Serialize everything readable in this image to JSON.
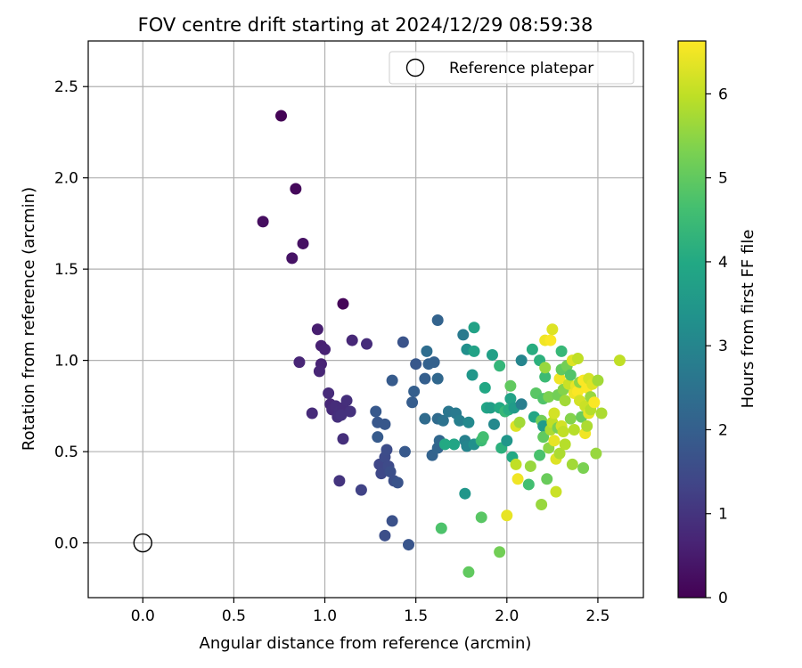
{
  "chart_data": {
    "type": "scatter",
    "title": "FOV centre drift starting at 2024/12/29 08:59:38",
    "xlabel": "Angular distance from reference (arcmin)",
    "ylabel": "Rotation from reference (arcmin)",
    "xlim": [
      -0.3,
      2.75
    ],
    "ylim": [
      -0.3,
      2.75
    ],
    "xticks": [
      "0.0",
      "0.5",
      "1.0",
      "1.5",
      "2.0",
      "2.5"
    ],
    "yticks": [
      "0.0",
      "0.5",
      "1.0",
      "1.5",
      "2.0",
      "2.5"
    ],
    "grid": true,
    "legend": {
      "position": "top-right",
      "entries": [
        "Reference platepar"
      ]
    },
    "reference_point": {
      "x": 0.0,
      "y": 0.0
    },
    "colorbar": {
      "label": "Hours from first FF file",
      "range": [
        0,
        6.63
      ],
      "ticks": [
        "0",
        "1",
        "2",
        "3",
        "4",
        "5",
        "6"
      ],
      "colormap": "viridis"
    },
    "series": [
      {
        "points": [
          {
            "x": 0.76,
            "y": 2.34,
            "h": 0.05
          },
          {
            "x": 1.1,
            "y": 1.31,
            "h": 0.1
          },
          {
            "x": 0.84,
            "y": 1.94,
            "h": 0.15
          },
          {
            "x": 0.66,
            "y": 1.76,
            "h": 0.25
          },
          {
            "x": 0.88,
            "y": 1.64,
            "h": 0.3
          },
          {
            "x": 0.82,
            "y": 1.56,
            "h": 0.35
          },
          {
            "x": 0.96,
            "y": 1.17,
            "h": 0.55
          },
          {
            "x": 0.98,
            "y": 1.08,
            "h": 0.6
          },
          {
            "x": 1.0,
            "y": 1.06,
            "h": 0.65
          },
          {
            "x": 0.86,
            "y": 0.99,
            "h": 0.7
          },
          {
            "x": 0.98,
            "y": 0.98,
            "h": 0.65
          },
          {
            "x": 0.97,
            "y": 0.94,
            "h": 0.7
          },
          {
            "x": 1.15,
            "y": 1.11,
            "h": 0.75
          },
          {
            "x": 1.23,
            "y": 1.09,
            "h": 0.85
          },
          {
            "x": 1.02,
            "y": 0.82,
            "h": 0.8
          },
          {
            "x": 1.03,
            "y": 0.76,
            "h": 0.75
          },
          {
            "x": 1.04,
            "y": 0.73,
            "h": 0.8
          },
          {
            "x": 1.06,
            "y": 0.75,
            "h": 0.85
          },
          {
            "x": 1.08,
            "y": 0.72,
            "h": 0.9
          },
          {
            "x": 1.1,
            "y": 0.74,
            "h": 0.85
          },
          {
            "x": 1.12,
            "y": 0.78,
            "h": 0.9
          },
          {
            "x": 1.07,
            "y": 0.69,
            "h": 0.9
          },
          {
            "x": 1.09,
            "y": 0.7,
            "h": 0.95
          },
          {
            "x": 0.93,
            "y": 0.71,
            "h": 0.8
          },
          {
            "x": 1.14,
            "y": 0.72,
            "h": 0.95
          },
          {
            "x": 1.1,
            "y": 0.57,
            "h": 0.9
          },
          {
            "x": 1.08,
            "y": 0.34,
            "h": 1.0
          },
          {
            "x": 1.2,
            "y": 0.29,
            "h": 1.3
          },
          {
            "x": 1.3,
            "y": 0.43,
            "h": 1.4
          },
          {
            "x": 1.31,
            "y": 0.38,
            "h": 1.45
          },
          {
            "x": 1.33,
            "y": 0.47,
            "h": 1.5
          },
          {
            "x": 1.34,
            "y": 0.51,
            "h": 1.55
          },
          {
            "x": 1.35,
            "y": 0.42,
            "h": 1.5
          },
          {
            "x": 1.36,
            "y": 0.39,
            "h": 1.6
          },
          {
            "x": 1.33,
            "y": 0.04,
            "h": 1.6
          },
          {
            "x": 1.37,
            "y": 0.12,
            "h": 1.65
          },
          {
            "x": 1.38,
            "y": 0.34,
            "h": 1.6
          },
          {
            "x": 1.4,
            "y": 0.33,
            "h": 1.7
          },
          {
            "x": 1.46,
            "y": -0.01,
            "h": 1.75
          },
          {
            "x": 1.33,
            "y": 0.65,
            "h": 1.8
          },
          {
            "x": 1.29,
            "y": 0.66,
            "h": 1.8
          },
          {
            "x": 1.28,
            "y": 0.72,
            "h": 1.85
          },
          {
            "x": 1.29,
            "y": 0.58,
            "h": 1.9
          },
          {
            "x": 1.37,
            "y": 0.89,
            "h": 1.9
          },
          {
            "x": 1.43,
            "y": 1.1,
            "h": 1.7
          },
          {
            "x": 1.44,
            "y": 0.5,
            "h": 1.85
          },
          {
            "x": 1.48,
            "y": 0.77,
            "h": 1.95
          },
          {
            "x": 1.49,
            "y": 0.83,
            "h": 2.0
          },
          {
            "x": 1.5,
            "y": 0.98,
            "h": 1.8
          },
          {
            "x": 1.55,
            "y": 0.9,
            "h": 2.0
          },
          {
            "x": 1.57,
            "y": 0.98,
            "h": 2.05
          },
          {
            "x": 1.6,
            "y": 0.99,
            "h": 2.05
          },
          {
            "x": 1.62,
            "y": 1.22,
            "h": 2.1
          },
          {
            "x": 1.62,
            "y": 0.9,
            "h": 2.2
          },
          {
            "x": 1.59,
            "y": 0.48,
            "h": 2.1
          },
          {
            "x": 1.62,
            "y": 0.52,
            "h": 2.15
          },
          {
            "x": 1.63,
            "y": 0.56,
            "h": 2.2
          },
          {
            "x": 1.62,
            "y": 0.68,
            "h": 2.3
          },
          {
            "x": 1.55,
            "y": 0.68,
            "h": 2.3
          },
          {
            "x": 1.56,
            "y": 1.05,
            "h": 2.35
          },
          {
            "x": 1.65,
            "y": 0.67,
            "h": 2.5
          },
          {
            "x": 1.68,
            "y": 0.72,
            "h": 2.6
          },
          {
            "x": 1.72,
            "y": 0.71,
            "h": 2.7
          },
          {
            "x": 1.77,
            "y": 0.56,
            "h": 2.9
          },
          {
            "x": 1.78,
            "y": 0.53,
            "h": 3.0
          },
          {
            "x": 1.74,
            "y": 0.67,
            "h": 2.85
          },
          {
            "x": 1.76,
            "y": 1.14,
            "h": 2.7
          },
          {
            "x": 1.77,
            "y": 0.27,
            "h": 3.45
          },
          {
            "x": 1.82,
            "y": 0.54,
            "h": 3.3
          },
          {
            "x": 1.79,
            "y": 0.66,
            "h": 3.1
          },
          {
            "x": 1.78,
            "y": 1.06,
            "h": 3.3
          },
          {
            "x": 1.81,
            "y": 0.92,
            "h": 3.5
          },
          {
            "x": 1.82,
            "y": 1.18,
            "h": 3.8
          },
          {
            "x": 1.82,
            "y": 1.05,
            "h": 3.8
          },
          {
            "x": 1.71,
            "y": 0.54,
            "h": 3.9
          },
          {
            "x": 1.66,
            "y": 0.54,
            "h": 4.0
          },
          {
            "x": 1.64,
            "y": 0.08,
            "h": 4.75
          },
          {
            "x": 1.79,
            "y": -0.16,
            "h": 5.0
          },
          {
            "x": 1.86,
            "y": 0.14,
            "h": 4.9
          },
          {
            "x": 1.86,
            "y": 0.56,
            "h": 4.5
          },
          {
            "x": 1.87,
            "y": 0.58,
            "h": 4.6
          },
          {
            "x": 1.88,
            "y": 0.85,
            "h": 3.95
          },
          {
            "x": 1.89,
            "y": 0.74,
            "h": 3.9
          },
          {
            "x": 1.91,
            "y": 0.74,
            "h": 3.7
          },
          {
            "x": 1.92,
            "y": 1.03,
            "h": 3.75
          },
          {
            "x": 1.93,
            "y": 0.65,
            "h": 3.1
          },
          {
            "x": 1.96,
            "y": 0.74,
            "h": 4.0
          },
          {
            "x": 1.96,
            "y": 0.97,
            "h": 4.35
          },
          {
            "x": 1.97,
            "y": 0.52,
            "h": 4.2
          },
          {
            "x": 1.99,
            "y": 0.72,
            "h": 4.4
          },
          {
            "x": 2.0,
            "y": 0.56,
            "h": 3.45
          },
          {
            "x": 2.01,
            "y": 0.73,
            "h": 4.1
          },
          {
            "x": 2.02,
            "y": 0.79,
            "h": 3.8
          },
          {
            "x": 2.02,
            "y": 0.86,
            "h": 5.0
          },
          {
            "x": 2.03,
            "y": 0.47,
            "h": 4.0
          },
          {
            "x": 2.04,
            "y": 0.74,
            "h": 3.6
          },
          {
            "x": 2.05,
            "y": 0.64,
            "h": 6.3
          },
          {
            "x": 2.05,
            "y": 0.43,
            "h": 6.0
          },
          {
            "x": 2.06,
            "y": 0.35,
            "h": 6.5
          },
          {
            "x": 2.07,
            "y": 0.66,
            "h": 5.7
          },
          {
            "x": 2.08,
            "y": 1.0,
            "h": 3.0
          },
          {
            "x": 2.08,
            "y": 0.76,
            "h": 2.8
          },
          {
            "x": 1.96,
            "y": -0.05,
            "h": 5.2
          },
          {
            "x": 2.0,
            "y": 0.15,
            "h": 6.4
          },
          {
            "x": 2.12,
            "y": 0.32,
            "h": 4.6
          },
          {
            "x": 2.13,
            "y": 0.42,
            "h": 5.6
          },
          {
            "x": 2.14,
            "y": 1.06,
            "h": 4.1
          },
          {
            "x": 2.15,
            "y": 0.69,
            "h": 3.9
          },
          {
            "x": 2.16,
            "y": 0.82,
            "h": 4.9
          },
          {
            "x": 2.18,
            "y": 1.0,
            "h": 4.2
          },
          {
            "x": 2.18,
            "y": 0.48,
            "h": 4.7
          },
          {
            "x": 2.19,
            "y": 0.21,
            "h": 5.6
          },
          {
            "x": 2.19,
            "y": 0.67,
            "h": 5.2
          },
          {
            "x": 2.2,
            "y": 0.64,
            "h": 3.6
          },
          {
            "x": 2.2,
            "y": 0.58,
            "h": 5.0
          },
          {
            "x": 2.2,
            "y": 0.79,
            "h": 4.8
          },
          {
            "x": 2.21,
            "y": 0.91,
            "h": 4.5
          },
          {
            "x": 2.21,
            "y": 0.96,
            "h": 5.6
          },
          {
            "x": 2.21,
            "y": 1.11,
            "h": 6.5
          },
          {
            "x": 2.22,
            "y": 0.35,
            "h": 5.1
          },
          {
            "x": 2.23,
            "y": 0.8,
            "h": 5.3
          },
          {
            "x": 2.23,
            "y": 0.52,
            "h": 5.5
          },
          {
            "x": 2.24,
            "y": 0.62,
            "h": 5.8
          },
          {
            "x": 2.24,
            "y": 1.11,
            "h": 6.6
          },
          {
            "x": 2.25,
            "y": 1.17,
            "h": 6.3
          },
          {
            "x": 2.25,
            "y": 0.66,
            "h": 6.0
          },
          {
            "x": 2.26,
            "y": 0.71,
            "h": 6.2
          },
          {
            "x": 2.26,
            "y": 0.56,
            "h": 6.4
          },
          {
            "x": 2.27,
            "y": 0.46,
            "h": 6.3
          },
          {
            "x": 2.27,
            "y": 0.28,
            "h": 6.1
          },
          {
            "x": 2.28,
            "y": 0.81,
            "h": 5.2
          },
          {
            "x": 2.28,
            "y": 0.63,
            "h": 5.3
          },
          {
            "x": 2.29,
            "y": 0.9,
            "h": 6.5
          },
          {
            "x": 2.29,
            "y": 0.49,
            "h": 5.8
          },
          {
            "x": 2.3,
            "y": 0.64,
            "h": 6.2
          },
          {
            "x": 2.3,
            "y": 1.05,
            "h": 4.4
          },
          {
            "x": 2.3,
            "y": 0.95,
            "h": 5.0
          },
          {
            "x": 2.31,
            "y": 0.84,
            "h": 5.4
          },
          {
            "x": 2.31,
            "y": 0.61,
            "h": 6.0
          },
          {
            "x": 2.32,
            "y": 0.54,
            "h": 5.9
          },
          {
            "x": 2.32,
            "y": 0.78,
            "h": 5.7
          },
          {
            "x": 2.33,
            "y": 0.97,
            "h": 5.2
          },
          {
            "x": 2.34,
            "y": 0.87,
            "h": 6.1
          },
          {
            "x": 2.35,
            "y": 0.92,
            "h": 4.8
          },
          {
            "x": 2.35,
            "y": 0.68,
            "h": 5.4
          },
          {
            "x": 2.36,
            "y": 0.43,
            "h": 5.7
          },
          {
            "x": 2.36,
            "y": 1.0,
            "h": 6.3
          },
          {
            "x": 2.37,
            "y": 0.82,
            "h": 6.5
          },
          {
            "x": 2.37,
            "y": 0.62,
            "h": 5.9
          },
          {
            "x": 2.38,
            "y": 0.86,
            "h": 6.4
          },
          {
            "x": 2.39,
            "y": 1.01,
            "h": 6.0
          },
          {
            "x": 2.39,
            "y": 0.83,
            "h": 6.6
          },
          {
            "x": 2.4,
            "y": 0.78,
            "h": 6.2
          },
          {
            "x": 2.4,
            "y": 0.88,
            "h": 5.5
          },
          {
            "x": 2.41,
            "y": 0.69,
            "h": 5.1
          },
          {
            "x": 2.42,
            "y": 0.41,
            "h": 5.3
          },
          {
            "x": 2.42,
            "y": 0.89,
            "h": 6.6
          },
          {
            "x": 2.43,
            "y": 0.75,
            "h": 6.1
          },
          {
            "x": 2.43,
            "y": 0.6,
            "h": 6.5
          },
          {
            "x": 2.44,
            "y": 0.85,
            "h": 6.6
          },
          {
            "x": 2.44,
            "y": 0.64,
            "h": 5.8
          },
          {
            "x": 2.45,
            "y": 0.71,
            "h": 6.4
          },
          {
            "x": 2.45,
            "y": 0.9,
            "h": 6.2
          },
          {
            "x": 2.46,
            "y": 0.73,
            "h": 5.9
          },
          {
            "x": 2.46,
            "y": 0.8,
            "h": 5.6
          },
          {
            "x": 2.47,
            "y": 0.87,
            "h": 6.3
          },
          {
            "x": 2.48,
            "y": 0.77,
            "h": 6.6
          },
          {
            "x": 2.49,
            "y": 0.49,
            "h": 5.6
          },
          {
            "x": 2.5,
            "y": 0.89,
            "h": 5.7
          },
          {
            "x": 2.52,
            "y": 0.71,
            "h": 5.8
          },
          {
            "x": 2.62,
            "y": 1.0,
            "h": 6.0
          }
        ]
      }
    ]
  }
}
